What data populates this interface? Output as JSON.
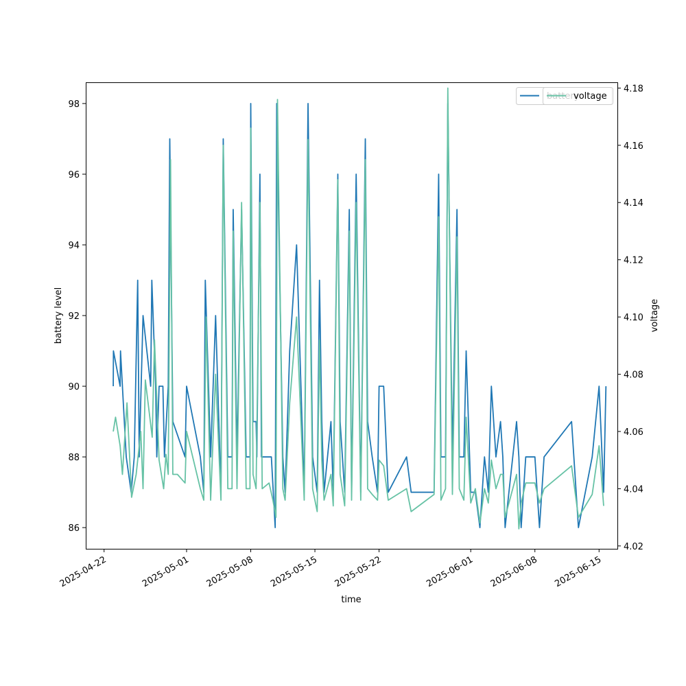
{
  "chart_data": {
    "type": "line",
    "xlabel": "time",
    "ylabel_left": "battery level",
    "ylabel_right": "voltage",
    "x_ticks": [
      "2025-04-22",
      "2025-05-01",
      "2025-05-08",
      "2025-05-15",
      "2025-05-22",
      "2025-06-01",
      "2025-06-08",
      "2025-06-15"
    ],
    "ylim_left": [
      85.4,
      98.6
    ],
    "ylim_right": [
      4.019,
      4.182
    ],
    "yticks_left": [
      86,
      88,
      90,
      92,
      94,
      96,
      98
    ],
    "yticks_right": [
      "4.02",
      "4.04",
      "4.06",
      "4.08",
      "4.10",
      "4.12",
      "4.14",
      "4.16",
      "4.18"
    ],
    "xlim": [
      "2025-04-20",
      "2025-06-17"
    ],
    "legend": {
      "placement": "top-right",
      "entries": [
        "battery",
        "voltage"
      ]
    },
    "grid": false,
    "series": [
      {
        "name": "battery",
        "axis": "left",
        "color": "#1f77b4",
        "points": [
          [
            "2025-04-23T00:00",
            90
          ],
          [
            "2025-04-23T00:30",
            91
          ],
          [
            "2025-04-23T18:00",
            90
          ],
          [
            "2025-04-23T19:00",
            91
          ],
          [
            "2025-04-24T10:00",
            88
          ],
          [
            "2025-04-24T23:00",
            87
          ],
          [
            "2025-04-25T07:00",
            88
          ],
          [
            "2025-04-25T16:00",
            93
          ],
          [
            "2025-04-25T20:00",
            88
          ],
          [
            "2025-04-26T06:00",
            92
          ],
          [
            "2025-04-27T02:00",
            90
          ],
          [
            "2025-04-27T05:00",
            93
          ],
          [
            "2025-04-27T15:00",
            90
          ],
          [
            "2025-04-27T18:00",
            88
          ],
          [
            "2025-04-28T00:00",
            90
          ],
          [
            "2025-04-28T10:00",
            90
          ],
          [
            "2025-04-28T14:00",
            88
          ],
          [
            "2025-04-29T00:00",
            90
          ],
          [
            "2025-04-29T04:00",
            97
          ],
          [
            "2025-04-29T12:00",
            89
          ],
          [
            "2025-04-30T20:00",
            88
          ],
          [
            "2025-05-01T00:00",
            90
          ],
          [
            "2025-05-02T12:00",
            88
          ],
          [
            "2025-05-02T21:00",
            87
          ],
          [
            "2025-05-03T01:00",
            93
          ],
          [
            "2025-05-03T15:00",
            88
          ],
          [
            "2025-05-04T04:00",
            92
          ],
          [
            "2025-05-04T18:00",
            87
          ],
          [
            "2025-05-05T00:00",
            97
          ],
          [
            "2025-05-05T12:00",
            88
          ],
          [
            "2025-05-05T23:00",
            88
          ],
          [
            "2025-05-06T02:00",
            95
          ],
          [
            "2025-05-06T12:00",
            88
          ],
          [
            "2025-05-07T00:00",
            95
          ],
          [
            "2025-05-07T12:00",
            88
          ],
          [
            "2025-05-07T22:00",
            88
          ],
          [
            "2025-05-08T00:00",
            98
          ],
          [
            "2025-05-08T06:00",
            89
          ],
          [
            "2025-05-08T14:00",
            89
          ],
          [
            "2025-05-08T16:00",
            88
          ],
          [
            "2025-05-09T00:00",
            96
          ],
          [
            "2025-05-09T04:00",
            88
          ],
          [
            "2025-05-10T00:00",
            88
          ],
          [
            "2025-05-10T06:00",
            88
          ],
          [
            "2025-05-10T16:00",
            86
          ],
          [
            "2025-05-10T20:00",
            98
          ],
          [
            "2025-05-11T12:00",
            88
          ],
          [
            "2025-05-11T18:00",
            87
          ],
          [
            "2025-05-12T06:00",
            91
          ],
          [
            "2025-05-13T00:00",
            94
          ],
          [
            "2025-05-13T20:00",
            87
          ],
          [
            "2025-05-14T06:00",
            98
          ],
          [
            "2025-05-14T18:00",
            88
          ],
          [
            "2025-05-15T06:00",
            87
          ],
          [
            "2025-05-15T12:00",
            93
          ],
          [
            "2025-05-15T18:00",
            89
          ],
          [
            "2025-05-16T00:00",
            87
          ],
          [
            "2025-05-16T18:00",
            89
          ],
          [
            "2025-05-17T00:00",
            87
          ],
          [
            "2025-05-17T12:00",
            96
          ],
          [
            "2025-05-17T18:00",
            89
          ],
          [
            "2025-05-18T06:00",
            87
          ],
          [
            "2025-05-18T18:00",
            95
          ],
          [
            "2025-05-19T00:00",
            87
          ],
          [
            "2025-05-19T12:00",
            96
          ],
          [
            "2025-05-20T00:00",
            87
          ],
          [
            "2025-05-20T12:00",
            97
          ],
          [
            "2025-05-20T18:00",
            89
          ],
          [
            "2025-05-21T06:00",
            88
          ],
          [
            "2025-05-21T20:00",
            87
          ],
          [
            "2025-05-22T00:00",
            90
          ],
          [
            "2025-05-22T12:00",
            90
          ],
          [
            "2025-05-23T00:00",
            87
          ],
          [
            "2025-05-25T00:00",
            88
          ],
          [
            "2025-05-25T12:00",
            87
          ],
          [
            "2025-05-27T00:00",
            87
          ],
          [
            "2025-05-28T00:00",
            87
          ],
          [
            "2025-05-28T12:00",
            96
          ],
          [
            "2025-05-28T18:00",
            88
          ],
          [
            "2025-05-29T06:00",
            88
          ],
          [
            "2025-05-29T12:00",
            98
          ],
          [
            "2025-05-30T00:00",
            88
          ],
          [
            "2025-05-30T12:00",
            95
          ],
          [
            "2025-05-30T18:00",
            88
          ],
          [
            "2025-05-31T06:00",
            88
          ],
          [
            "2025-05-31T12:00",
            91
          ],
          [
            "2025-06-01T00:00",
            87
          ],
          [
            "2025-06-01T12:00",
            87
          ],
          [
            "2025-06-02T00:00",
            86
          ],
          [
            "2025-06-02T12:00",
            88
          ],
          [
            "2025-06-02T22:00",
            87
          ],
          [
            "2025-06-03T06:00",
            90
          ],
          [
            "2025-06-03T18:00",
            88
          ],
          [
            "2025-06-04T06:00",
            89
          ],
          [
            "2025-06-04T12:00",
            88
          ],
          [
            "2025-06-04T18:00",
            86
          ],
          [
            "2025-06-06T00:00",
            89
          ],
          [
            "2025-06-06T06:00",
            88
          ],
          [
            "2025-06-06T12:00",
            86
          ],
          [
            "2025-06-07T00:00",
            88
          ],
          [
            "2025-06-07T12:00",
            88
          ],
          [
            "2025-06-08T00:00",
            88
          ],
          [
            "2025-06-08T12:00",
            86
          ],
          [
            "2025-06-09T00:00",
            88
          ],
          [
            "2025-06-12T00:00",
            89
          ],
          [
            "2025-06-12T18:00",
            86
          ],
          [
            "2025-06-14T06:00",
            88
          ],
          [
            "2025-06-15T00:00",
            90
          ],
          [
            "2025-06-15T12:00",
            87
          ],
          [
            "2025-06-15T18:00",
            90
          ]
        ]
      },
      {
        "name": "voltage",
        "axis": "right",
        "color": "#66c2a5",
        "points": [
          [
            "2025-04-23T00:00",
            4.06
          ],
          [
            "2025-04-23T06:00",
            4.065
          ],
          [
            "2025-04-23T18:00",
            4.055
          ],
          [
            "2025-04-24T00:00",
            4.045
          ],
          [
            "2025-04-24T12:00",
            4.07
          ],
          [
            "2025-04-25T00:00",
            4.037
          ],
          [
            "2025-04-25T12:00",
            4.045
          ],
          [
            "2025-04-26T00:00",
            4.06
          ],
          [
            "2025-04-26T06:00",
            4.04
          ],
          [
            "2025-04-26T12:00",
            4.078
          ],
          [
            "2025-04-27T06:00",
            4.058
          ],
          [
            "2025-04-27T12:00",
            4.092
          ],
          [
            "2025-04-28T00:00",
            4.05
          ],
          [
            "2025-04-28T06:00",
            4.045
          ],
          [
            "2025-04-28T12:00",
            4.04
          ],
          [
            "2025-04-28T18:00",
            4.052
          ],
          [
            "2025-04-29T00:00",
            4.045
          ],
          [
            "2025-04-29T06:00",
            4.155
          ],
          [
            "2025-04-29T12:00",
            4.045
          ],
          [
            "2025-04-30T00:00",
            4.045
          ],
          [
            "2025-04-30T20:00",
            4.042
          ],
          [
            "2025-05-01T00:00",
            4.06
          ],
          [
            "2025-05-02T12:00",
            4.04
          ],
          [
            "2025-05-02T21:00",
            4.036
          ],
          [
            "2025-05-03T03:00",
            4.1
          ],
          [
            "2025-05-03T15:00",
            4.036
          ],
          [
            "2025-05-04T04:00",
            4.08
          ],
          [
            "2025-05-04T18:00",
            4.036
          ],
          [
            "2025-05-05T00:00",
            4.16
          ],
          [
            "2025-05-05T12:00",
            4.04
          ],
          [
            "2025-05-05T23:00",
            4.04
          ],
          [
            "2025-05-06T02:00",
            4.13
          ],
          [
            "2025-05-06T12:00",
            4.04
          ],
          [
            "2025-05-07T00:00",
            4.14
          ],
          [
            "2025-05-07T12:00",
            4.04
          ],
          [
            "2025-05-07T22:00",
            4.04
          ],
          [
            "2025-05-08T00:00",
            4.166
          ],
          [
            "2025-05-08T06:00",
            4.045
          ],
          [
            "2025-05-08T14:00",
            4.04
          ],
          [
            "2025-05-09T00:00",
            4.14
          ],
          [
            "2025-05-09T06:00",
            4.04
          ],
          [
            "2025-05-10T00:00",
            4.042
          ],
          [
            "2025-05-10T10:00",
            4.036
          ],
          [
            "2025-05-10T18:00",
            4.03
          ],
          [
            "2025-05-10T22:00",
            4.176
          ],
          [
            "2025-05-11T12:00",
            4.04
          ],
          [
            "2025-05-11T18:00",
            4.036
          ],
          [
            "2025-05-12T06:00",
            4.07
          ],
          [
            "2025-05-13T00:00",
            4.1
          ],
          [
            "2025-05-13T20:00",
            4.036
          ],
          [
            "2025-05-14T06:00",
            4.162
          ],
          [
            "2025-05-14T18:00",
            4.04
          ],
          [
            "2025-05-15T06:00",
            4.032
          ],
          [
            "2025-05-15T12:00",
            4.092
          ],
          [
            "2025-05-15T18:00",
            4.05
          ],
          [
            "2025-05-16T00:00",
            4.036
          ],
          [
            "2025-05-16T18:00",
            4.045
          ],
          [
            "2025-05-17T00:00",
            4.034
          ],
          [
            "2025-05-17T12:00",
            4.148
          ],
          [
            "2025-05-17T18:00",
            4.045
          ],
          [
            "2025-05-18T06:00",
            4.034
          ],
          [
            "2025-05-18T18:00",
            4.13
          ],
          [
            "2025-05-19T00:00",
            4.036
          ],
          [
            "2025-05-19T12:00",
            4.14
          ],
          [
            "2025-05-20T00:00",
            4.036
          ],
          [
            "2025-05-20T12:00",
            4.155
          ],
          [
            "2025-05-20T18:00",
            4.04
          ],
          [
            "2025-05-21T06:00",
            4.038
          ],
          [
            "2025-05-21T20:00",
            4.036
          ],
          [
            "2025-05-22T00:00",
            4.05
          ],
          [
            "2025-05-22T12:00",
            4.048
          ],
          [
            "2025-05-23T00:00",
            4.036
          ],
          [
            "2025-05-25T00:00",
            4.04
          ],
          [
            "2025-05-25T12:00",
            4.032
          ],
          [
            "2025-05-28T00:00",
            4.038
          ],
          [
            "2025-05-28T12:00",
            4.135
          ],
          [
            "2025-05-28T18:00",
            4.036
          ],
          [
            "2025-05-29T06:00",
            4.04
          ],
          [
            "2025-05-29T12:00",
            4.18
          ],
          [
            "2025-05-30T00:00",
            4.038
          ],
          [
            "2025-05-30T12:00",
            4.128
          ],
          [
            "2025-05-30T18:00",
            4.04
          ],
          [
            "2025-05-31T06:00",
            4.036
          ],
          [
            "2025-05-31T12:00",
            4.065
          ],
          [
            "2025-06-01T00:00",
            4.035
          ],
          [
            "2025-06-01T12:00",
            4.04
          ],
          [
            "2025-06-02T00:00",
            4.028
          ],
          [
            "2025-06-02T12:00",
            4.04
          ],
          [
            "2025-06-02T22:00",
            4.035
          ],
          [
            "2025-06-03T06:00",
            4.05
          ],
          [
            "2025-06-03T18:00",
            4.04
          ],
          [
            "2025-06-04T06:00",
            4.045
          ],
          [
            "2025-06-04T12:00",
            4.045
          ],
          [
            "2025-06-04T18:00",
            4.03
          ],
          [
            "2025-06-06T00:00",
            4.045
          ],
          [
            "2025-06-06T06:00",
            4.026
          ],
          [
            "2025-06-06T12:00",
            4.035
          ],
          [
            "2025-06-07T00:00",
            4.042
          ],
          [
            "2025-06-08T00:00",
            4.042
          ],
          [
            "2025-06-08T12:00",
            4.035
          ],
          [
            "2025-06-09T00:00",
            4.04
          ],
          [
            "2025-06-12T00:00",
            4.048
          ],
          [
            "2025-06-12T18:00",
            4.03
          ],
          [
            "2025-06-14T06:00",
            4.038
          ],
          [
            "2025-06-15T00:00",
            4.055
          ],
          [
            "2025-06-15T12:00",
            4.034
          ]
        ]
      }
    ]
  }
}
